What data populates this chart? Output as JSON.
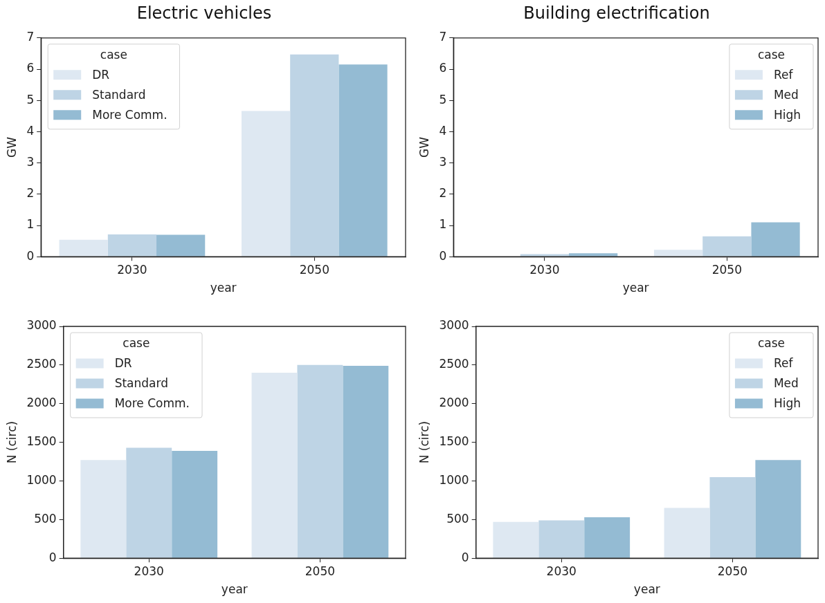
{
  "chart_data": [
    {
      "type": "bar",
      "title": "Electric vehicles",
      "xlabel": "year",
      "ylabel": "GW",
      "legend_title": "case",
      "legend": "top left",
      "categories": [
        "2030",
        "2050"
      ],
      "ylim": [
        0,
        7
      ],
      "yticks": [
        0,
        1,
        2,
        3,
        4,
        5,
        6,
        7
      ],
      "grid": false,
      "series": [
        {
          "name": "DR",
          "color": "#dee8f2",
          "values": [
            0.54,
            4.66
          ]
        },
        {
          "name": "Standard",
          "color": "#bed4e5",
          "values": [
            0.71,
            6.47
          ]
        },
        {
          "name": "More Comm.",
          "color": "#94bbd3",
          "values": [
            0.7,
            6.15
          ]
        }
      ]
    },
    {
      "type": "bar",
      "title": "Building electrification",
      "xlabel": "year",
      "ylabel": "GW",
      "legend_title": "case",
      "legend": "top right",
      "categories": [
        "2030",
        "2050"
      ],
      "ylim": [
        0,
        7
      ],
      "yticks": [
        0,
        1,
        2,
        3,
        4,
        5,
        6,
        7
      ],
      "grid": false,
      "series": [
        {
          "name": "Ref",
          "color": "#dee8f2",
          "values": [
            0,
            0.22
          ]
        },
        {
          "name": "Med",
          "color": "#bed4e5",
          "values": [
            0.08,
            0.65
          ]
        },
        {
          "name": "High",
          "color": "#94bbd3",
          "values": [
            0.11,
            1.1
          ]
        }
      ]
    },
    {
      "type": "bar",
      "xlabel": "year",
      "ylabel": "N (circ)",
      "legend_title": "case",
      "legend": "top left",
      "categories": [
        "2030",
        "2050"
      ],
      "ylim": [
        0,
        3000
      ],
      "yticks": [
        0,
        500,
        1000,
        1500,
        2000,
        2500,
        3000
      ],
      "grid": false,
      "series": [
        {
          "name": "DR",
          "color": "#dee8f2",
          "values": [
            1270,
            2400
          ]
        },
        {
          "name": "Standard",
          "color": "#bed4e5",
          "values": [
            1430,
            2500
          ]
        },
        {
          "name": "More Comm.",
          "color": "#94bbd3",
          "values": [
            1390,
            2490
          ]
        }
      ]
    },
    {
      "type": "bar",
      "xlabel": "year",
      "ylabel": "N (circ)",
      "legend_title": "case",
      "legend": "top right",
      "categories": [
        "2030",
        "2050"
      ],
      "ylim": [
        0,
        3000
      ],
      "yticks": [
        0,
        500,
        1000,
        1500,
        2000,
        2500,
        3000
      ],
      "grid": false,
      "series": [
        {
          "name": "Ref",
          "color": "#dee8f2",
          "values": [
            470,
            650
          ]
        },
        {
          "name": "Med",
          "color": "#bed4e5",
          "values": [
            490,
            1050
          ]
        },
        {
          "name": "High",
          "color": "#94bbd3",
          "values": [
            530,
            1270
          ]
        }
      ]
    }
  ]
}
